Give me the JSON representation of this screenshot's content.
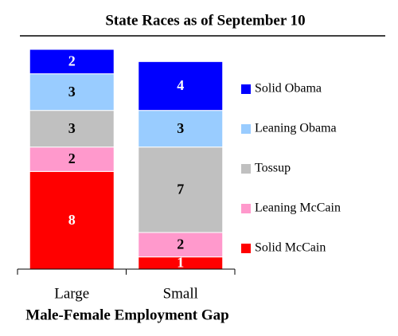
{
  "chart_data": {
    "type": "stacked-bar",
    "title": "State Races as of September 10",
    "x_label": "Male-Female Employment Gap",
    "categories": [
      "Large",
      "Small"
    ],
    "series": [
      {
        "name": "Solid McCain",
        "color": "#ff0000",
        "label_color": "#ffffff",
        "values": [
          8,
          1
        ]
      },
      {
        "name": "Leaning McCain",
        "color": "#ff99cc",
        "label_color": "#000000",
        "values": [
          2,
          2
        ]
      },
      {
        "name": "Tossup",
        "color": "#c0c0c0",
        "label_color": "#000000",
        "values": [
          3,
          7
        ]
      },
      {
        "name": "Leaning Obama",
        "color": "#99ccff",
        "label_color": "#000000",
        "values": [
          3,
          3
        ]
      },
      {
        "name": "Solid Obama",
        "color": "#0000ff",
        "label_color": "#ffffff",
        "values": [
          2,
          4
        ]
      }
    ],
    "ylim": [
      0,
      18
    ],
    "legend": "right"
  }
}
